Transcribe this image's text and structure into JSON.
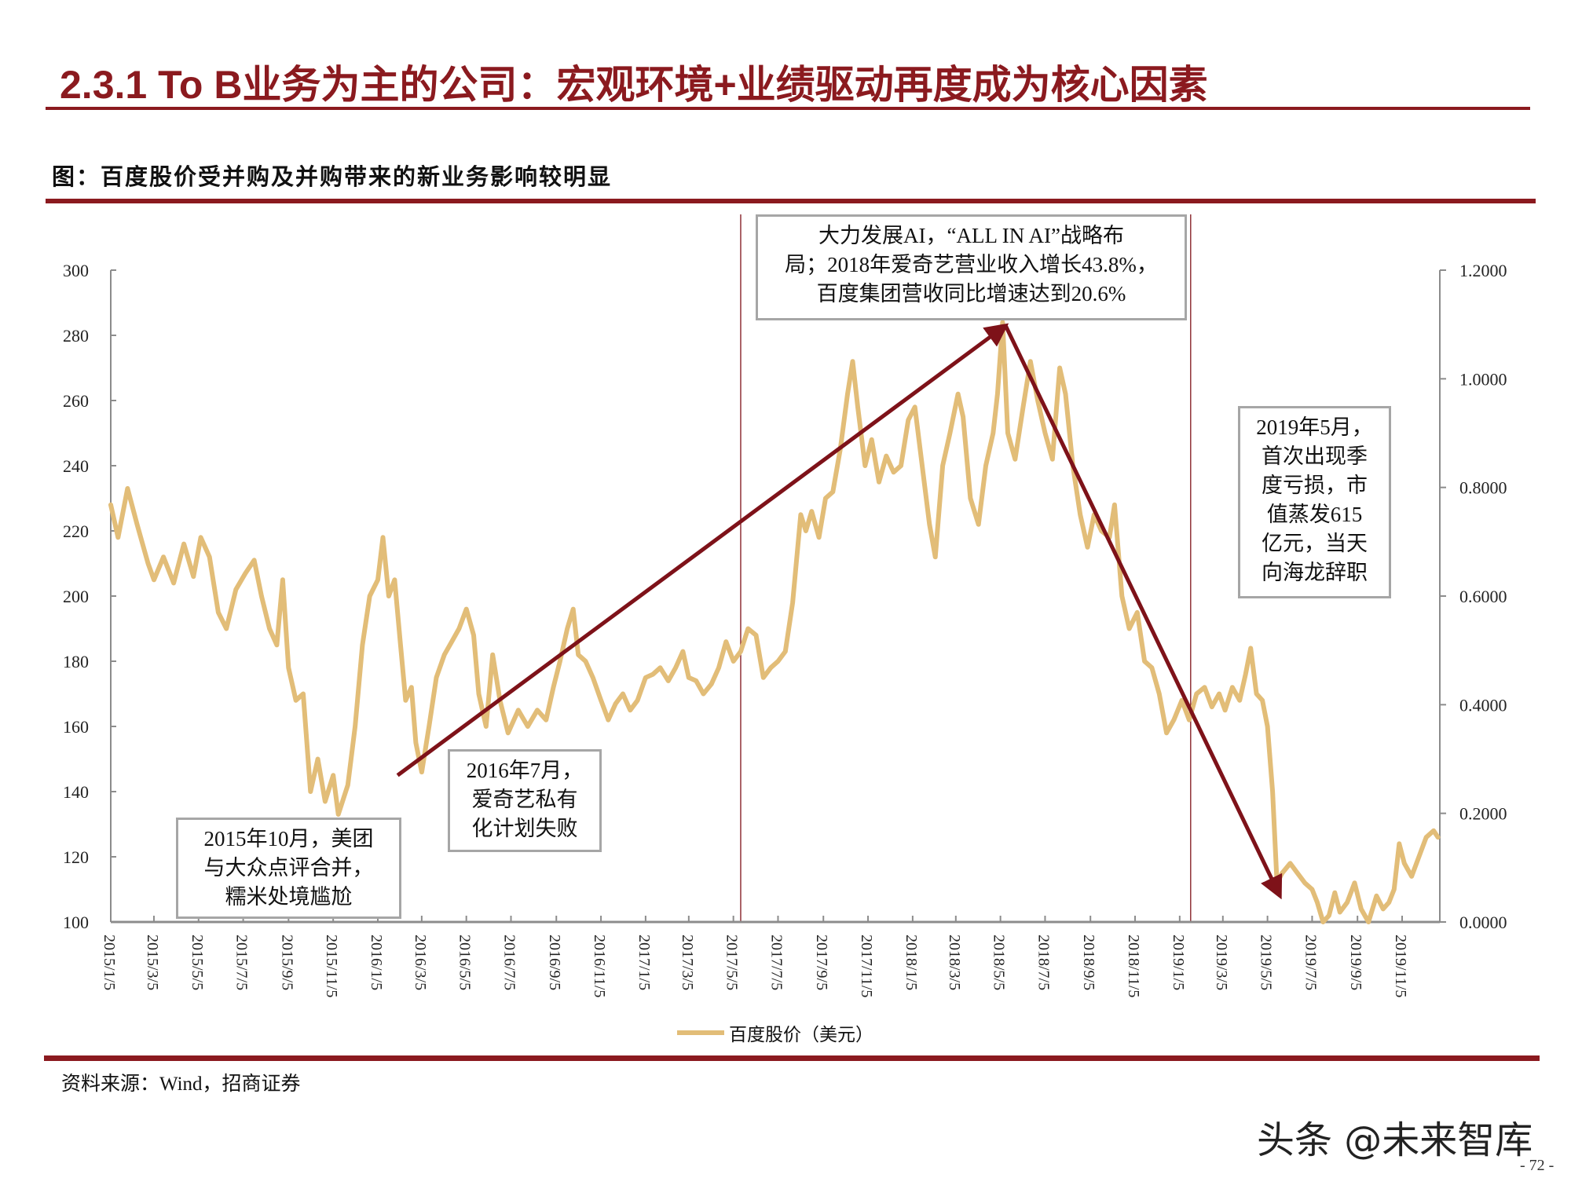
{
  "header": {
    "title": "2.3.1 To B业务为主的公司：宏观环境+业绩驱动再度成为核心因素",
    "figure_caption": "图：百度股价受并购及并购带来的新业务影响较明显"
  },
  "footer": {
    "source": "资料来源：Wind，招商证券",
    "watermark": "头条 @未来智库",
    "page_number": "- 72 -"
  },
  "colors": {
    "accent": "#8b1a1f",
    "series": "#e2bd78",
    "annotation_arrow": "#7e1219",
    "axis": "#8c8c8c"
  },
  "chart_data": {
    "type": "line",
    "title": "",
    "legend": {
      "placement": "bottom",
      "entries": [
        "百度股价（美元）"
      ]
    },
    "grid": false,
    "x_axis": {
      "type": "date",
      "range": [
        "2015-01-05",
        "2019-12-26"
      ],
      "tick_labels": [
        "2015/1/5",
        "2015/3/5",
        "2015/5/5",
        "2015/7/5",
        "2015/9/5",
        "2015/11/5",
        "2016/1/5",
        "2016/3/5",
        "2016/5/5",
        "2016/7/5",
        "2016/9/5",
        "2016/11/5",
        "2017/1/5",
        "2017/3/5",
        "2017/5/5",
        "2017/7/5",
        "2017/9/5",
        "2017/11/5",
        "2018/1/5",
        "2018/3/5",
        "2018/5/5",
        "2018/7/5",
        "2018/9/5",
        "2018/11/5",
        "2019/1/5",
        "2019/3/5",
        "2019/5/5",
        "2019/7/5",
        "2019/9/5",
        "2019/11/5"
      ],
      "tick_dates": [
        "2015-01-05",
        "2015-03-05",
        "2015-05-05",
        "2015-07-05",
        "2015-09-05",
        "2015-11-05",
        "2016-01-05",
        "2016-03-05",
        "2016-05-05",
        "2016-07-05",
        "2016-09-05",
        "2016-11-05",
        "2017-01-05",
        "2017-03-05",
        "2017-05-05",
        "2017-07-05",
        "2017-09-05",
        "2017-11-05",
        "2018-01-05",
        "2018-03-05",
        "2018-05-05",
        "2018-07-05",
        "2018-09-05",
        "2018-11-05",
        "2019-01-05",
        "2019-03-05",
        "2019-05-05",
        "2019-07-05",
        "2019-09-05",
        "2019-11-05"
      ]
    },
    "y_axis_left": {
      "range": [
        100,
        300
      ],
      "ticks": [
        "100",
        "120",
        "140",
        "160",
        "180",
        "200",
        "220",
        "240",
        "260",
        "280",
        "300"
      ]
    },
    "y_axis_right": {
      "range": [
        0,
        1.2
      ],
      "ticks": [
        "0.0000",
        "0.2000",
        "0.4000",
        "0.6000",
        "0.8000",
        "1.0000",
        "1.2000"
      ]
    },
    "series": [
      {
        "name": "百度股价（美元）",
        "axis": "left",
        "points": [
          [
            "2015-01-05",
            228
          ],
          [
            "2015-01-15",
            218
          ],
          [
            "2015-01-28",
            233
          ],
          [
            "2015-02-10",
            222
          ],
          [
            "2015-02-25",
            210
          ],
          [
            "2015-03-05",
            205
          ],
          [
            "2015-03-18",
            212
          ],
          [
            "2015-04-01",
            204
          ],
          [
            "2015-04-15",
            216
          ],
          [
            "2015-04-28",
            206
          ],
          [
            "2015-05-08",
            218
          ],
          [
            "2015-05-20",
            212
          ],
          [
            "2015-06-01",
            195
          ],
          [
            "2015-06-12",
            190
          ],
          [
            "2015-06-25",
            202
          ],
          [
            "2015-07-08",
            207
          ],
          [
            "2015-07-20",
            211
          ],
          [
            "2015-07-30",
            200
          ],
          [
            "2015-08-10",
            190
          ],
          [
            "2015-08-20",
            185
          ],
          [
            "2015-08-28",
            205
          ],
          [
            "2015-09-05",
            178
          ],
          [
            "2015-09-15",
            168
          ],
          [
            "2015-09-25",
            170
          ],
          [
            "2015-10-05",
            140
          ],
          [
            "2015-10-15",
            150
          ],
          [
            "2015-10-25",
            137
          ],
          [
            "2015-11-05",
            145
          ],
          [
            "2015-11-12",
            133
          ],
          [
            "2015-11-25",
            142
          ],
          [
            "2015-12-05",
            160
          ],
          [
            "2015-12-15",
            185
          ],
          [
            "2015-12-25",
            200
          ],
          [
            "2016-01-05",
            205
          ],
          [
            "2016-01-12",
            218
          ],
          [
            "2016-01-20",
            200
          ],
          [
            "2016-01-28",
            205
          ],
          [
            "2016-02-05",
            185
          ],
          [
            "2016-02-12",
            168
          ],
          [
            "2016-02-20",
            172
          ],
          [
            "2016-02-26",
            155
          ],
          [
            "2016-03-05",
            146
          ],
          [
            "2016-03-15",
            160
          ],
          [
            "2016-03-25",
            175
          ],
          [
            "2016-04-05",
            182
          ],
          [
            "2016-04-15",
            186
          ],
          [
            "2016-04-25",
            190
          ],
          [
            "2016-05-05",
            196
          ],
          [
            "2016-05-15",
            188
          ],
          [
            "2016-05-22",
            170
          ],
          [
            "2016-06-01",
            160
          ],
          [
            "2016-06-10",
            182
          ],
          [
            "2016-06-20",
            168
          ],
          [
            "2016-07-01",
            158
          ],
          [
            "2016-07-15",
            165
          ],
          [
            "2016-07-28",
            160
          ],
          [
            "2016-08-10",
            165
          ],
          [
            "2016-08-22",
            162
          ],
          [
            "2016-09-01",
            172
          ],
          [
            "2016-09-10",
            180
          ],
          [
            "2016-09-20",
            190
          ],
          [
            "2016-09-28",
            196
          ],
          [
            "2016-10-05",
            182
          ],
          [
            "2016-10-15",
            180
          ],
          [
            "2016-10-25",
            175
          ],
          [
            "2016-11-05",
            168
          ],
          [
            "2016-11-15",
            162
          ],
          [
            "2016-11-25",
            167
          ],
          [
            "2016-12-05",
            170
          ],
          [
            "2016-12-15",
            165
          ],
          [
            "2016-12-25",
            168
          ],
          [
            "2017-01-05",
            175
          ],
          [
            "2017-01-15",
            176
          ],
          [
            "2017-01-25",
            178
          ],
          [
            "2017-02-05",
            174
          ],
          [
            "2017-02-15",
            178
          ],
          [
            "2017-02-25",
            183
          ],
          [
            "2017-03-05",
            175
          ],
          [
            "2017-03-15",
            174
          ],
          [
            "2017-03-25",
            170
          ],
          [
            "2017-04-05",
            173
          ],
          [
            "2017-04-15",
            178
          ],
          [
            "2017-04-25",
            186
          ],
          [
            "2017-05-05",
            180
          ],
          [
            "2017-05-15",
            183
          ],
          [
            "2017-05-25",
            190
          ],
          [
            "2017-06-05",
            188
          ],
          [
            "2017-06-15",
            175
          ],
          [
            "2017-06-25",
            178
          ],
          [
            "2017-07-05",
            180
          ],
          [
            "2017-07-15",
            183
          ],
          [
            "2017-07-25",
            198
          ],
          [
            "2017-08-05",
            225
          ],
          [
            "2017-08-12",
            220
          ],
          [
            "2017-08-20",
            226
          ],
          [
            "2017-08-30",
            218
          ],
          [
            "2017-09-08",
            230
          ],
          [
            "2017-09-18",
            232
          ],
          [
            "2017-09-28",
            245
          ],
          [
            "2017-10-08",
            262
          ],
          [
            "2017-10-15",
            272
          ],
          [
            "2017-10-22",
            258
          ],
          [
            "2017-11-01",
            240
          ],
          [
            "2017-11-10",
            248
          ],
          [
            "2017-11-20",
            235
          ],
          [
            "2017-11-30",
            243
          ],
          [
            "2017-12-10",
            238
          ],
          [
            "2017-12-20",
            240
          ],
          [
            "2017-12-30",
            254
          ],
          [
            "2018-01-08",
            258
          ],
          [
            "2018-01-18",
            240
          ],
          [
            "2018-01-28",
            222
          ],
          [
            "2018-02-05",
            212
          ],
          [
            "2018-02-15",
            240
          ],
          [
            "2018-02-25",
            250
          ],
          [
            "2018-03-08",
            262
          ],
          [
            "2018-03-15",
            255
          ],
          [
            "2018-03-25",
            230
          ],
          [
            "2018-04-05",
            222
          ],
          [
            "2018-04-15",
            240
          ],
          [
            "2018-04-25",
            250
          ],
          [
            "2018-05-01",
            262
          ],
          [
            "2018-05-08",
            284
          ],
          [
            "2018-05-15",
            250
          ],
          [
            "2018-05-25",
            242
          ],
          [
            "2018-06-05",
            258
          ],
          [
            "2018-06-15",
            272
          ],
          [
            "2018-06-25",
            260
          ],
          [
            "2018-07-05",
            250
          ],
          [
            "2018-07-15",
            242
          ],
          [
            "2018-07-25",
            270
          ],
          [
            "2018-08-02",
            262
          ],
          [
            "2018-08-12",
            240
          ],
          [
            "2018-08-22",
            225
          ],
          [
            "2018-09-01",
            215
          ],
          [
            "2018-09-10",
            225
          ],
          [
            "2018-09-20",
            220
          ],
          [
            "2018-10-01",
            218
          ],
          [
            "2018-10-08",
            228
          ],
          [
            "2018-10-18",
            200
          ],
          [
            "2018-10-28",
            190
          ],
          [
            "2018-11-08",
            195
          ],
          [
            "2018-11-18",
            180
          ],
          [
            "2018-11-28",
            178
          ],
          [
            "2018-12-08",
            170
          ],
          [
            "2018-12-18",
            158
          ],
          [
            "2018-12-28",
            162
          ],
          [
            "2019-01-08",
            168
          ],
          [
            "2019-01-18",
            162
          ],
          [
            "2019-01-28",
            170
          ],
          [
            "2019-02-08",
            172
          ],
          [
            "2019-02-18",
            166
          ],
          [
            "2019-02-28",
            170
          ],
          [
            "2019-03-08",
            165
          ],
          [
            "2019-03-18",
            172
          ],
          [
            "2019-03-28",
            168
          ],
          [
            "2019-04-05",
            176
          ],
          [
            "2019-04-12",
            184
          ],
          [
            "2019-04-20",
            170
          ],
          [
            "2019-04-28",
            168
          ],
          [
            "2019-05-05",
            160
          ],
          [
            "2019-05-12",
            140
          ],
          [
            "2019-05-18",
            112
          ],
          [
            "2019-05-25",
            115
          ],
          [
            "2019-06-05",
            118
          ],
          [
            "2019-06-15",
            115
          ],
          [
            "2019-06-25",
            112
          ],
          [
            "2019-07-05",
            110
          ],
          [
            "2019-07-12",
            106
          ],
          [
            "2019-07-20",
            100
          ],
          [
            "2019-07-28",
            102
          ],
          [
            "2019-08-05",
            109
          ],
          [
            "2019-08-12",
            103
          ],
          [
            "2019-08-22",
            106
          ],
          [
            "2019-09-01",
            112
          ],
          [
            "2019-09-10",
            104
          ],
          [
            "2019-09-20",
            100
          ],
          [
            "2019-10-01",
            108
          ],
          [
            "2019-10-10",
            104
          ],
          [
            "2019-10-18",
            106
          ],
          [
            "2019-10-25",
            110
          ],
          [
            "2019-11-01",
            124
          ],
          [
            "2019-11-08",
            118
          ],
          [
            "2019-11-18",
            114
          ],
          [
            "2019-11-28",
            120
          ],
          [
            "2019-12-08",
            126
          ],
          [
            "2019-12-18",
            128
          ],
          [
            "2019-12-24",
            126
          ]
        ]
      }
    ],
    "reference_lines": [
      {
        "date": "2017-05-15"
      },
      {
        "date": "2019-01-20"
      }
    ],
    "arrows": [
      {
        "from": [
          "2016-02-01",
          145
        ],
        "to": [
          "2018-05-12",
          283
        ]
      },
      {
        "from": [
          "2018-05-12",
          283
        ],
        "to": [
          "2019-05-22",
          108
        ]
      }
    ],
    "annotations": [
      {
        "id": "ai-strategy",
        "lines": [
          "大力发展AI，“ALL IN AI”战略布",
          "局；2018年爱奇艺营业收入增长43.8%，",
          "百度集团营收同比增速达到20.6%"
        ]
      },
      {
        "id": "q-loss-2019",
        "lines": [
          "2019年5月，",
          "首次出现季",
          "度亏损，市",
          "值蒸发615",
          "亿元，当天",
          "向海龙辞职"
        ]
      },
      {
        "id": "iqiyi-2016",
        "lines": [
          "2016年7月，",
          "爱奇艺私有",
          "化计划失败"
        ]
      },
      {
        "id": "meituan-2015",
        "lines": [
          "2015年10月，美团",
          "与大众点评合并，",
          "糯米处境尴尬"
        ]
      }
    ]
  }
}
